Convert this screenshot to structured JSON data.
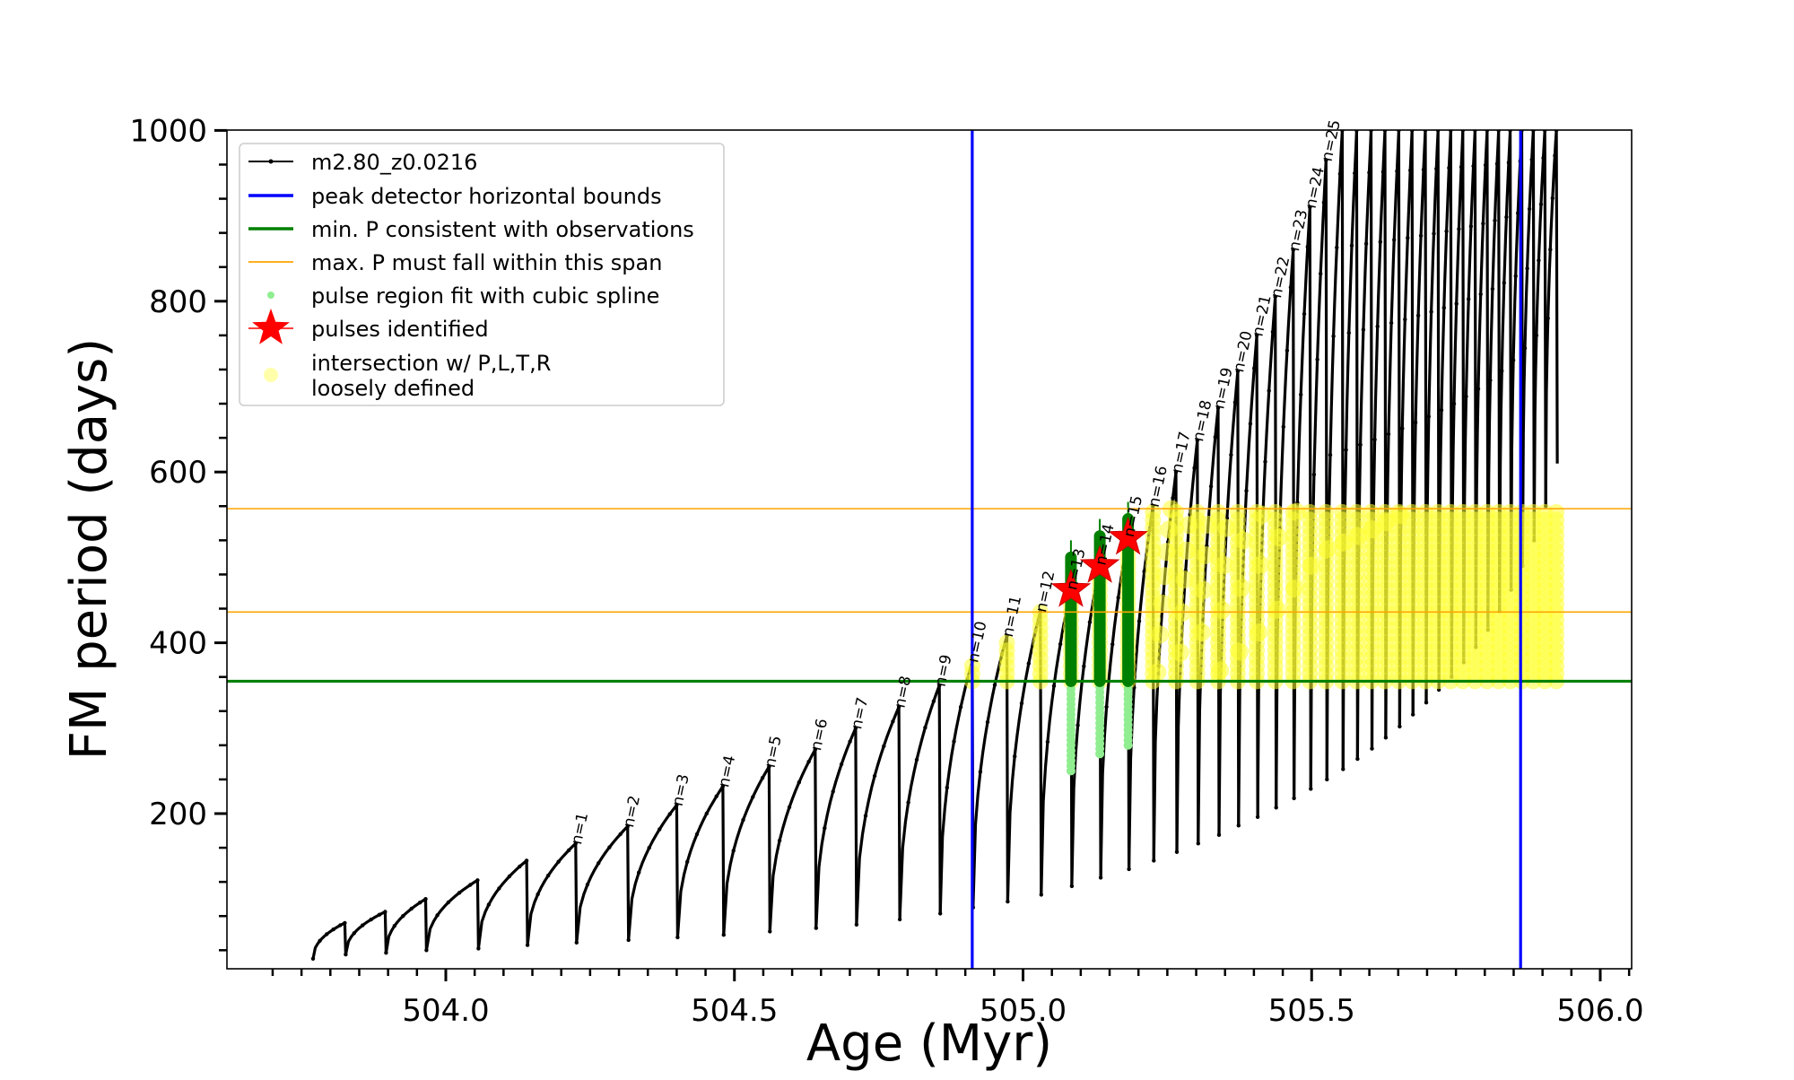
{
  "chart_data": {
    "type": "scatter",
    "xlabel": "Age (Myr)",
    "ylabel": "FM period (days)",
    "xlim": [
      503.65,
      506.08
    ],
    "ylim": [
      20,
      1000
    ],
    "x_ticks": [
      504.0,
      504.5,
      505.0,
      505.5,
      506.0
    ],
    "x_tick_labels": [
      "504.0",
      "504.5",
      "505.0",
      "505.5",
      "506.0"
    ],
    "y_ticks": [
      200,
      400,
      600,
      800,
      1000
    ],
    "y_tick_labels": [
      "200",
      "400",
      "600",
      "800",
      "1000"
    ],
    "grid": false,
    "legend_position": "top-left",
    "legend": [
      {
        "label": "m2.80_z0.0216",
        "color": "#000000",
        "kind": "line-marker"
      },
      {
        "label": "peak detector horizontal bounds",
        "color": "#0000ff",
        "kind": "line"
      },
      {
        "label": "min. P consistent with observations",
        "color": "#008000",
        "kind": "line"
      },
      {
        "label": "max. P must fall within this span",
        "color": "#ffa500",
        "kind": "thin-line"
      },
      {
        "label": "pulse region fit with cubic spline",
        "color": "#90ee90",
        "kind": "dot"
      },
      {
        "label": "pulses identified",
        "color": "#ff0000",
        "kind": "star"
      },
      {
        "label": "intersection w/ P,L,T,R",
        "label2": "loosely defined",
        "color": "#ffff66",
        "kind": "big-dot"
      }
    ],
    "vertical_lines": [
      {
        "x": 504.912,
        "color": "#0000ff"
      },
      {
        "x": 505.862,
        "color": "#0000ff"
      }
    ],
    "horizontal_lines": [
      {
        "y": 355,
        "color": "#008000",
        "style": "thick"
      },
      {
        "y": 436,
        "color": "#ffa500",
        "style": "thin"
      },
      {
        "y": 557,
        "color": "#ffa500",
        "style": "thin"
      }
    ],
    "track_start": {
      "x": 503.77,
      "y": 30
    },
    "pulses": [
      {
        "n": null,
        "x": 503.825,
        "peak": 72,
        "min": 35
      },
      {
        "n": null,
        "x": 503.895,
        "peak": 85,
        "min": 37
      },
      {
        "n": null,
        "x": 503.965,
        "peak": 100,
        "min": 40
      },
      {
        "n": null,
        "x": 504.055,
        "peak": 122,
        "min": 42
      },
      {
        "n": null,
        "x": 504.14,
        "peak": 145,
        "min": 46
      },
      {
        "n": 1,
        "x": 504.225,
        "peak": 165,
        "min": 49
      },
      {
        "n": 2,
        "x": 504.315,
        "peak": 185,
        "min": 52
      },
      {
        "n": 3,
        "x": 504.4,
        "peak": 210,
        "min": 55
      },
      {
        "n": 4,
        "x": 504.48,
        "peak": 232,
        "min": 58
      },
      {
        "n": 5,
        "x": 504.56,
        "peak": 255,
        "min": 62
      },
      {
        "n": 6,
        "x": 504.64,
        "peak": 275,
        "min": 66
      },
      {
        "n": 7,
        "x": 504.71,
        "peak": 300,
        "min": 70
      },
      {
        "n": 8,
        "x": 504.785,
        "peak": 325,
        "min": 76
      },
      {
        "n": 9,
        "x": 504.855,
        "peak": 350,
        "min": 83
      },
      {
        "n": 10,
        "x": 504.912,
        "peak": 378,
        "min": 90
      },
      {
        "n": 11,
        "x": 504.972,
        "peak": 408,
        "min": 97
      },
      {
        "n": 12,
        "x": 505.03,
        "peak": 437,
        "min": 105
      },
      {
        "n": 13,
        "x": 505.083,
        "peak": 463,
        "min": 115
      },
      {
        "n": 14,
        "x": 505.133,
        "peak": 492,
        "min": 125
      },
      {
        "n": 15,
        "x": 505.182,
        "peak": 525,
        "min": 135
      },
      {
        "n": 16,
        "x": 505.225,
        "peak": 560,
        "min": 145
      },
      {
        "n": 17,
        "x": 505.265,
        "peak": 600,
        "min": 155
      },
      {
        "n": 18,
        "x": 505.302,
        "peak": 637,
        "min": 165
      },
      {
        "n": 19,
        "x": 505.338,
        "peak": 675,
        "min": 175
      },
      {
        "n": 20,
        "x": 505.372,
        "peak": 718,
        "min": 186
      },
      {
        "n": 21,
        "x": 505.405,
        "peak": 760,
        "min": 196
      },
      {
        "n": 22,
        "x": 505.437,
        "peak": 805,
        "min": 207
      },
      {
        "n": 23,
        "x": 505.468,
        "peak": 860,
        "min": 218
      },
      {
        "n": 24,
        "x": 505.497,
        "peak": 910,
        "min": 229
      },
      {
        "n": 25,
        "x": 505.525,
        "peak": 965,
        "min": 240
      },
      {
        "n": null,
        "x": 505.553,
        "peak": 1000,
        "min": 252
      },
      {
        "n": null,
        "x": 505.578,
        "peak": 1000,
        "min": 264
      },
      {
        "n": null,
        "x": 505.603,
        "peak": 1000,
        "min": 276
      },
      {
        "n": null,
        "x": 505.627,
        "peak": 1000,
        "min": 289
      },
      {
        "n": null,
        "x": 505.651,
        "peak": 1000,
        "min": 302
      },
      {
        "n": null,
        "x": 505.674,
        "peak": 1000,
        "min": 316
      },
      {
        "n": null,
        "x": 505.697,
        "peak": 1000,
        "min": 330
      },
      {
        "n": null,
        "x": 505.719,
        "peak": 1000,
        "min": 345
      },
      {
        "n": null,
        "x": 505.741,
        "peak": 1000,
        "min": 360
      },
      {
        "n": null,
        "x": 505.762,
        "peak": 1000,
        "min": 377
      },
      {
        "n": null,
        "x": 505.783,
        "peak": 1000,
        "min": 395
      },
      {
        "n": null,
        "x": 505.804,
        "peak": 1000,
        "min": 415
      },
      {
        "n": null,
        "x": 505.824,
        "peak": 1000,
        "min": 437
      },
      {
        "n": null,
        "x": 505.844,
        "peak": 1000,
        "min": 462
      },
      {
        "n": null,
        "x": 505.864,
        "peak": 1000,
        "min": 490
      },
      {
        "n": null,
        "x": 505.884,
        "peak": 1000,
        "min": 520
      },
      {
        "n": null,
        "x": 505.904,
        "peak": 1000,
        "min": 560
      },
      {
        "n": null,
        "x": 505.924,
        "peak": 1000,
        "min": 610
      }
    ],
    "pulses_identified": [
      {
        "n": 13,
        "x": 505.083,
        "y": 462
      },
      {
        "n": 14,
        "x": 505.133,
        "y": 490
      },
      {
        "n": 15,
        "x": 505.182,
        "y": 523
      }
    ],
    "spline_fit_regions": [
      {
        "n": 13,
        "x": 505.083,
        "y_min": 250,
        "y_max": 500
      },
      {
        "n": 14,
        "x": 505.133,
        "y_min": 270,
        "y_max": 525
      },
      {
        "n": 15,
        "x": 505.182,
        "y_min": 280,
        "y_max": 545
      }
    ]
  }
}
